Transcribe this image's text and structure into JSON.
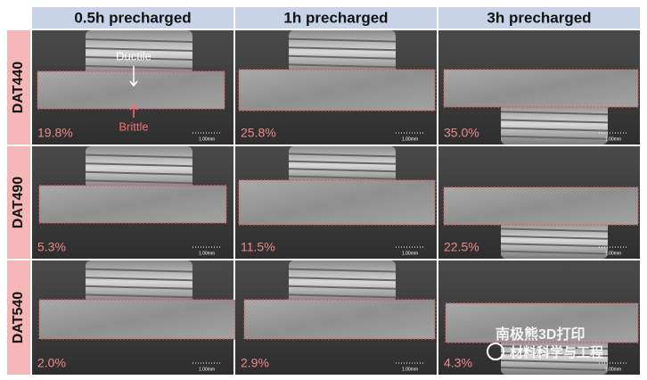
{
  "header": {
    "columns": [
      "0.5h precharged",
      "1h precharged",
      "3h precharged"
    ]
  },
  "rows": [
    {
      "label": "DAT440",
      "panels": [
        {
          "percent": "19.8%",
          "scale": "1.00mm"
        },
        {
          "percent": "25.8%",
          "scale": "1.00mm"
        },
        {
          "percent": "35.0%",
          "scale": "1.00mm"
        }
      ]
    },
    {
      "label": "DAT490",
      "panels": [
        {
          "percent": "5.3%",
          "scale": "1.00mm"
        },
        {
          "percent": "11.5%",
          "scale": "1.00mm"
        },
        {
          "percent": "22.5%",
          "scale": "1.00mm"
        }
      ]
    },
    {
      "label": "DAT540",
      "panels": [
        {
          "percent": "2.0%",
          "scale": "1.00mm"
        },
        {
          "percent": "2.9%",
          "scale": "1.00mm"
        },
        {
          "percent": "4.3%",
          "scale": "1.00mm"
        }
      ]
    }
  ],
  "annotations": {
    "ductile": "Ductile",
    "brittle": "Brittle"
  },
  "watermark": {
    "line1": "南极熊3D打印",
    "line2": "材料科学与工程"
  }
}
